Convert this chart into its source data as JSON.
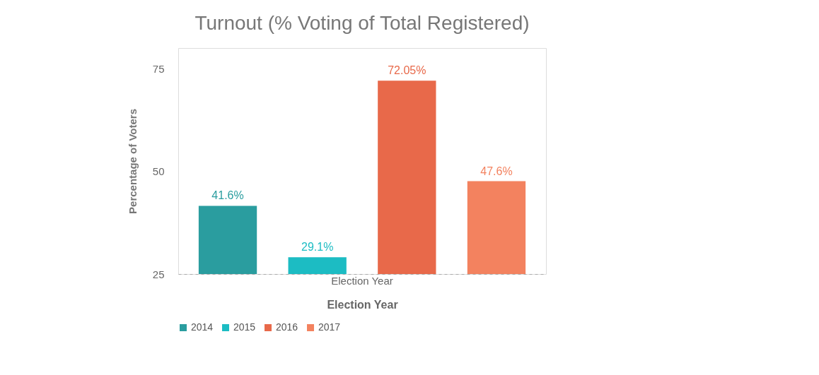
{
  "chart_data": {
    "type": "bar",
    "title": "Turnout (% Voting of Total Registered)",
    "xlabel": "Election Year",
    "ylabel": "Percentage of Voters",
    "categories": [
      "Election Year"
    ],
    "series": [
      {
        "name": "2014",
        "color": "#2a9d9f",
        "values": [
          41.6
        ],
        "value_labels": [
          "41.6%"
        ]
      },
      {
        "name": "2015",
        "color": "#1cbcc3",
        "values": [
          29.1
        ],
        "value_labels": [
          "29.1%"
        ]
      },
      {
        "name": "2016",
        "color": "#e8694a",
        "values": [
          72.05
        ],
        "value_labels": [
          "72.05%"
        ]
      },
      {
        "name": "2017",
        "color": "#f3825f",
        "values": [
          47.6
        ],
        "value_labels": [
          "47.6%"
        ]
      }
    ],
    "ylim": [
      25,
      80
    ],
    "yticks": [
      25,
      50,
      75
    ],
    "grid": false,
    "legend": "bottom"
  }
}
